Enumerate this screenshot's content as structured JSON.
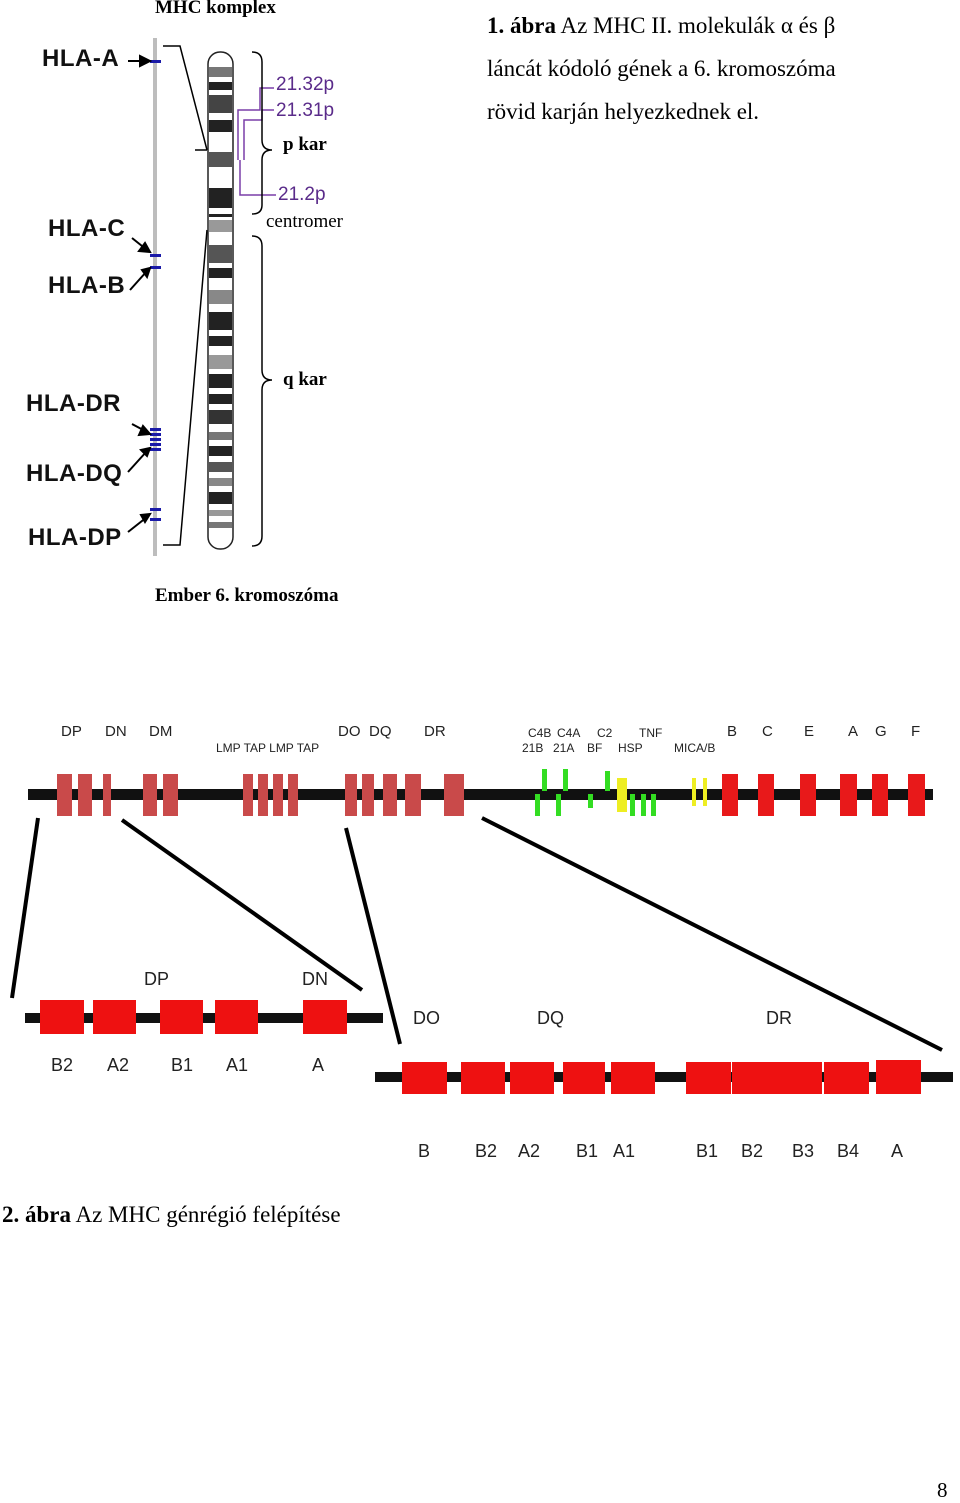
{
  "figure1": {
    "corner_label": "MHC komplex",
    "caption_bold": "1. ábra",
    "caption_lines": [
      "Az MHC II. molekulák α és β",
      "láncát kódoló gének a 6. kromoszóma",
      "rövid karján helyezkednek el."
    ],
    "hla_genes": [
      "HLA-A",
      "HLA-C",
      "HLA-B",
      "HLA-DR",
      "HLA-DQ",
      "HLA-DP"
    ],
    "bands": [
      "21.32p",
      "21.31p",
      "21.2p"
    ],
    "arm_labels": {
      "p": "p kar",
      "centromere": "centromer",
      "q": "q kar"
    },
    "bottom_label": "Ember 6. kromoszóma",
    "colors": {
      "gene_marks": "#1a1aa8",
      "band_text": "#5a2b8a"
    }
  },
  "figure2": {
    "top_labels": {
      "class2": [
        "DP",
        "DN",
        "DM"
      ],
      "lmp_tap": "LMP TAP LMP TAP",
      "class2b": [
        "DO",
        "DQ",
        "DR"
      ],
      "class3_top": [
        "C4B",
        "C4A",
        "C2",
        "TNF"
      ],
      "class3_bottom": [
        "21B",
        "21A",
        "BF",
        "HSP"
      ],
      "mica": "MICA/B",
      "class1": [
        "B",
        "C",
        "E",
        "A",
        "G",
        "F"
      ]
    },
    "zoom_left": {
      "headers": [
        "DP",
        "DN"
      ],
      "genes": [
        "B2",
        "A2",
        "B1",
        "A1",
        "A"
      ]
    },
    "zoom_right": {
      "headers": [
        "DO",
        "DQ",
        "DR"
      ],
      "genes": [
        "B",
        "B2",
        "A2",
        "B1",
        "A1",
        "B1",
        "B2",
        "B3",
        "B4",
        "A"
      ]
    },
    "caption_bold": "2. ábra",
    "caption_text": "Az MHC génrégió felépítése",
    "colors": {
      "class2_gene": "#c94a4a",
      "class1_gene": "#e8191a",
      "green": "#33dd22",
      "yellow": "#eeee22"
    }
  },
  "page_number": "8"
}
